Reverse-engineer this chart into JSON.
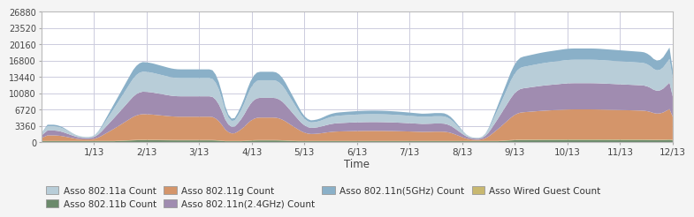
{
  "title": "",
  "xlabel": "Time",
  "ylabel": "",
  "ylim": [
    0,
    26880
  ],
  "yticks": [
    0,
    3360,
    6720,
    10080,
    13440,
    16800,
    20160,
    23520,
    26880
  ],
  "xtick_labels": [
    "1/13",
    "2/13",
    "3/13",
    "4/13",
    "5/13",
    "6/13",
    "7/13",
    "8/13",
    "9/13",
    "10/13",
    "11/13",
    "12/13"
  ],
  "colors": {
    "802.11a": "#b8cdd8",
    "802.11b": "#6b8a6b",
    "802.11g": "#d4956a",
    "802.11n_2.4": "#a08cb0",
    "802.11n_5": "#8ab0c8",
    "wired_guest": "#c8b870"
  },
  "legend_labels": [
    "Asso 802.11a Count",
    "Asso 802.11b Count",
    "Asso 802.11g Count",
    "Asso 802.11n(2.4GHz) Count",
    "Asso 802.11n(5GHz) Count",
    "Asso Wired Guest Count"
  ],
  "fig_bg": "#f4f4f4",
  "plot_bg": "#ffffff",
  "grid_color": "#ccccdd"
}
